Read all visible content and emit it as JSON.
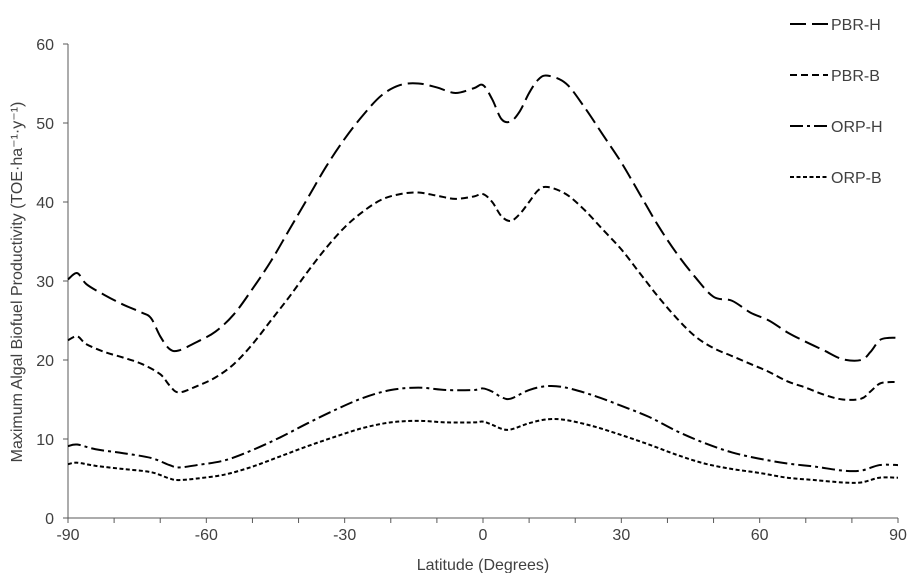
{
  "chart_data": {
    "type": "line",
    "title": "",
    "xlabel": "Latitude (Degrees)",
    "ylabel": "Maximum Algal Biofuel Productivity (TOE·ha⁻¹·y⁻¹)",
    "xlim": [
      -90,
      90
    ],
    "ylim": [
      0,
      60
    ],
    "xticks": [
      "-90",
      "-60",
      "-30",
      "0",
      "30",
      "60",
      "90"
    ],
    "yticks": [
      "0",
      "10",
      "20",
      "30",
      "40",
      "50",
      "60"
    ],
    "grid": false,
    "legend_position": "top-right",
    "series": [
      {
        "name": "PBR-H",
        "dash": "long-dash",
        "color": "#000000",
        "points": [
          [
            -90,
            30.2
          ],
          [
            -88,
            31
          ],
          [
            -86,
            29.6
          ],
          [
            -82,
            28.2
          ],
          [
            -78,
            27
          ],
          [
            -74,
            26
          ],
          [
            -72,
            25.3
          ],
          [
            -70,
            23
          ],
          [
            -68,
            21.4
          ],
          [
            -66,
            21.2
          ],
          [
            -62,
            22.3
          ],
          [
            -58,
            23.6
          ],
          [
            -54,
            25.8
          ],
          [
            -50,
            29
          ],
          [
            -46,
            32.5
          ],
          [
            -42,
            36.5
          ],
          [
            -38,
            40.5
          ],
          [
            -34,
            44.5
          ],
          [
            -30,
            48
          ],
          [
            -26,
            51
          ],
          [
            -22,
            53.5
          ],
          [
            -18,
            54.8
          ],
          [
            -14,
            55
          ],
          [
            -10,
            54.5
          ],
          [
            -6,
            53.8
          ],
          [
            -2,
            54.4
          ],
          [
            0,
            54.8
          ],
          [
            2,
            53
          ],
          [
            4,
            50.5
          ],
          [
            6,
            50.2
          ],
          [
            8,
            51.5
          ],
          [
            10,
            53.8
          ],
          [
            12,
            55.5
          ],
          [
            14,
            56
          ],
          [
            18,
            55
          ],
          [
            22,
            52
          ],
          [
            26,
            48.5
          ],
          [
            30,
            45
          ],
          [
            34,
            41
          ],
          [
            38,
            37
          ],
          [
            42,
            33.5
          ],
          [
            46,
            30.5
          ],
          [
            50,
            28
          ],
          [
            54,
            27.5
          ],
          [
            58,
            26
          ],
          [
            62,
            25
          ],
          [
            66,
            23.5
          ],
          [
            70,
            22.3
          ],
          [
            74,
            21.2
          ],
          [
            78,
            20.1
          ],
          [
            82,
            20
          ],
          [
            84,
            21
          ],
          [
            86,
            22.5
          ],
          [
            88,
            22.8
          ],
          [
            90,
            22.8
          ]
        ]
      },
      {
        "name": "PBR-B",
        "dash": "short-dash",
        "color": "#000000",
        "points": [
          [
            -90,
            22.5
          ],
          [
            -88,
            23
          ],
          [
            -86,
            22
          ],
          [
            -82,
            21
          ],
          [
            -78,
            20.3
          ],
          [
            -74,
            19.5
          ],
          [
            -70,
            18.2
          ],
          [
            -68,
            16.8
          ],
          [
            -66,
            15.9
          ],
          [
            -62,
            16.7
          ],
          [
            -58,
            17.8
          ],
          [
            -54,
            19.5
          ],
          [
            -50,
            22
          ],
          [
            -46,
            25
          ],
          [
            -42,
            28
          ],
          [
            -38,
            31.2
          ],
          [
            -34,
            34.2
          ],
          [
            -30,
            36.8
          ],
          [
            -26,
            38.8
          ],
          [
            -22,
            40.3
          ],
          [
            -18,
            41
          ],
          [
            -14,
            41.2
          ],
          [
            -10,
            40.8
          ],
          [
            -6,
            40.4
          ],
          [
            -2,
            40.7
          ],
          [
            0,
            41
          ],
          [
            2,
            40
          ],
          [
            4,
            38.2
          ],
          [
            6,
            37.6
          ],
          [
            8,
            38.5
          ],
          [
            10,
            40
          ],
          [
            12,
            41.5
          ],
          [
            14,
            41.9
          ],
          [
            18,
            41
          ],
          [
            22,
            39
          ],
          [
            26,
            36.5
          ],
          [
            30,
            34
          ],
          [
            34,
            31
          ],
          [
            38,
            28
          ],
          [
            42,
            25.3
          ],
          [
            46,
            23
          ],
          [
            50,
            21.5
          ],
          [
            54,
            20.5
          ],
          [
            58,
            19.5
          ],
          [
            62,
            18.5
          ],
          [
            66,
            17.3
          ],
          [
            70,
            16.5
          ],
          [
            74,
            15.6
          ],
          [
            78,
            15
          ],
          [
            82,
            15.1
          ],
          [
            84,
            16
          ],
          [
            86,
            17
          ],
          [
            88,
            17.2
          ],
          [
            90,
            17.2
          ]
        ]
      },
      {
        "name": "ORP-H",
        "dash": "dash-dot",
        "color": "#000000",
        "points": [
          [
            -90,
            9.1
          ],
          [
            -88,
            9.3
          ],
          [
            -84,
            8.7
          ],
          [
            -78,
            8.2
          ],
          [
            -72,
            7.6
          ],
          [
            -68,
            6.7
          ],
          [
            -66,
            6.4
          ],
          [
            -62,
            6.7
          ],
          [
            -56,
            7.3
          ],
          [
            -50,
            8.6
          ],
          [
            -44,
            10.2
          ],
          [
            -38,
            12
          ],
          [
            -32,
            13.7
          ],
          [
            -26,
            15.2
          ],
          [
            -20,
            16.2
          ],
          [
            -14,
            16.5
          ],
          [
            -8,
            16.2
          ],
          [
            -2,
            16.2
          ],
          [
            0,
            16.4
          ],
          [
            2,
            16
          ],
          [
            4,
            15.3
          ],
          [
            6,
            15.1
          ],
          [
            10,
            16.2
          ],
          [
            14,
            16.7
          ],
          [
            18,
            16.5
          ],
          [
            24,
            15.5
          ],
          [
            30,
            14.2
          ],
          [
            36,
            12.8
          ],
          [
            42,
            11
          ],
          [
            48,
            9.5
          ],
          [
            54,
            8.3
          ],
          [
            60,
            7.5
          ],
          [
            66,
            6.9
          ],
          [
            72,
            6.5
          ],
          [
            78,
            6
          ],
          [
            82,
            6
          ],
          [
            86,
            6.7
          ],
          [
            90,
            6.7
          ]
        ]
      },
      {
        "name": "ORP-B",
        "dash": "dotted",
        "color": "#000000",
        "points": [
          [
            -90,
            6.8
          ],
          [
            -88,
            7
          ],
          [
            -84,
            6.6
          ],
          [
            -78,
            6.2
          ],
          [
            -72,
            5.8
          ],
          [
            -68,
            5
          ],
          [
            -66,
            4.8
          ],
          [
            -62,
            5
          ],
          [
            -56,
            5.5
          ],
          [
            -50,
            6.5
          ],
          [
            -44,
            7.8
          ],
          [
            -38,
            9.1
          ],
          [
            -32,
            10.3
          ],
          [
            -26,
            11.4
          ],
          [
            -20,
            12.1
          ],
          [
            -14,
            12.3
          ],
          [
            -8,
            12.1
          ],
          [
            -2,
            12.1
          ],
          [
            0,
            12.2
          ],
          [
            2,
            11.8
          ],
          [
            4,
            11.3
          ],
          [
            6,
            11.2
          ],
          [
            10,
            12
          ],
          [
            14,
            12.5
          ],
          [
            18,
            12.4
          ],
          [
            24,
            11.6
          ],
          [
            30,
            10.5
          ],
          [
            36,
            9.3
          ],
          [
            42,
            8
          ],
          [
            48,
            6.9
          ],
          [
            54,
            6.2
          ],
          [
            60,
            5.7
          ],
          [
            66,
            5.1
          ],
          [
            72,
            4.8
          ],
          [
            78,
            4.5
          ],
          [
            82,
            4.5
          ],
          [
            86,
            5.1
          ],
          [
            90,
            5.1
          ]
        ]
      }
    ]
  }
}
